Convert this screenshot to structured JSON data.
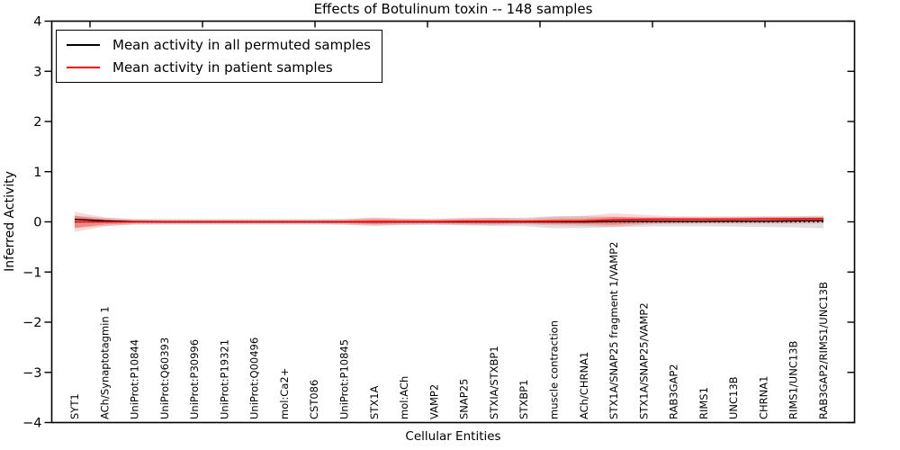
{
  "chart_data": {
    "type": "line",
    "title": "Effects of Botulinum toxin -- 148 samples",
    "xlabel": "Cellular Entities",
    "ylabel": "Inferred Activity",
    "ylim": [
      -4,
      4
    ],
    "grid": false,
    "legend_position": "upper left",
    "yticks": [
      4,
      3,
      2,
      1,
      0,
      -1,
      -2,
      -3,
      -4
    ],
    "ytick_labels": [
      "4",
      "3",
      "2",
      "1",
      "0",
      "−1",
      "−2",
      "−3",
      "−4"
    ],
    "categories": [
      "SYT1",
      "ACh/Synaptotagmin 1",
      "UniProt:P10844",
      "UniProt:Q60393",
      "UniProt:P30996",
      "UniProt:P19321",
      "UniProt:Q00496",
      "mol:Ca2+",
      "CST086",
      "UniProt:P10845",
      "STX1A",
      "mol:ACh",
      "VAMP2",
      "SNAP25",
      "STXIA/STXBP1",
      "STXBP1",
      "muscle contraction",
      "ACh/CHRNA1",
      "STX1A/SNAP25 fragment 1/VAMP2",
      "STX1A/SNAP25/VAMP2",
      "RAB3GAP2",
      "RIMS1",
      "UNC13B",
      "CHRNA1",
      "RIMS1/UNC13B",
      "RAB3GAP2/RIMS1/UNC13B"
    ],
    "series": [
      {
        "name": "Mean activity in all permuted samples",
        "color": "#000000",
        "style": "solid",
        "in_legend": true,
        "values": [
          0.05,
          0.02,
          0.005,
          0,
          0,
          0,
          0,
          0,
          0,
          0,
          0,
          0,
          0,
          0,
          0,
          0,
          0,
          0,
          0.005,
          0.01,
          0.01,
          0.01,
          0.015,
          0.015,
          0.02,
          0.025
        ]
      },
      {
        "name": "Mean activity in patient samples",
        "color": "#ff0000",
        "style": "solid",
        "in_legend": true,
        "values": [
          0,
          0,
          0,
          0,
          0,
          0,
          0,
          0,
          0,
          0,
          0.005,
          0.005,
          0.005,
          0.01,
          0.01,
          0.01,
          0.015,
          0.02,
          0.04,
          0.05,
          0.055,
          0.055,
          0.055,
          0.06,
          0.06,
          0.065
        ]
      },
      {
        "name": "zero reference (dotted)",
        "color": "#000000",
        "style": "dotted",
        "in_legend": false,
        "values": [
          0,
          0,
          0,
          0,
          0,
          0,
          0,
          0,
          0,
          0,
          0,
          0,
          0,
          0,
          0,
          0,
          0,
          0,
          0,
          0,
          0,
          0,
          0,
          0,
          0,
          0
        ]
      }
    ],
    "bands": [
      {
        "name": "permuted samples spread",
        "color": "rgba(110,110,110,0.22)",
        "upper": [
          0.12,
          0.08,
          0.06,
          0.055,
          0.055,
          0.055,
          0.055,
          0.055,
          0.055,
          0.06,
          0.075,
          0.065,
          0.06,
          0.07,
          0.08,
          0.085,
          0.115,
          0.115,
          0.1,
          0.095,
          0.09,
          0.09,
          0.095,
          0.1,
          0.11,
          0.125
        ],
        "lower": [
          -0.12,
          -0.08,
          -0.06,
          -0.055,
          -0.055,
          -0.055,
          -0.055,
          -0.055,
          -0.055,
          -0.06,
          -0.075,
          -0.065,
          -0.06,
          -0.07,
          -0.08,
          -0.085,
          -0.125,
          -0.125,
          -0.105,
          -0.095,
          -0.09,
          -0.09,
          -0.095,
          -0.1,
          -0.11,
          -0.13
        ]
      },
      {
        "name": "patient samples spread outer",
        "color": "rgba(255,20,20,0.17)",
        "upper": [
          0.2,
          0.09,
          0.045,
          0.04,
          0.04,
          0.04,
          0.04,
          0.04,
          0.04,
          0.05,
          0.09,
          0.065,
          0.055,
          0.08,
          0.085,
          0.065,
          0.1,
          0.12,
          0.17,
          0.14,
          0.115,
          0.11,
          0.11,
          0.115,
          0.11,
          0.1
        ],
        "lower": [
          -0.2,
          -0.09,
          -0.045,
          -0.04,
          -0.04,
          -0.04,
          -0.04,
          -0.04,
          -0.04,
          -0.05,
          -0.08,
          -0.055,
          -0.05,
          -0.06,
          -0.065,
          -0.05,
          -0.07,
          -0.08,
          -0.1,
          -0.055,
          -0.04,
          -0.035,
          -0.035,
          -0.035,
          -0.035,
          -0.03
        ]
      },
      {
        "name": "patient samples spread inner",
        "color": "rgba(255,20,20,0.30)",
        "upper": [
          0.12,
          0.05,
          0.025,
          0.02,
          0.02,
          0.02,
          0.02,
          0.02,
          0.02,
          0.025,
          0.05,
          0.035,
          0.03,
          0.045,
          0.05,
          0.035,
          0.055,
          0.065,
          0.1,
          0.085,
          0.075,
          0.07,
          0.07,
          0.075,
          0.08,
          0.085
        ],
        "lower": [
          -0.12,
          -0.05,
          -0.025,
          -0.02,
          -0.02,
          -0.02,
          -0.02,
          -0.02,
          -0.02,
          -0.025,
          -0.045,
          -0.03,
          -0.027,
          -0.035,
          -0.04,
          -0.03,
          -0.04,
          -0.045,
          -0.055,
          -0.03,
          -0.02,
          -0.018,
          -0.018,
          -0.018,
          -0.015,
          -0.01
        ]
      }
    ]
  }
}
